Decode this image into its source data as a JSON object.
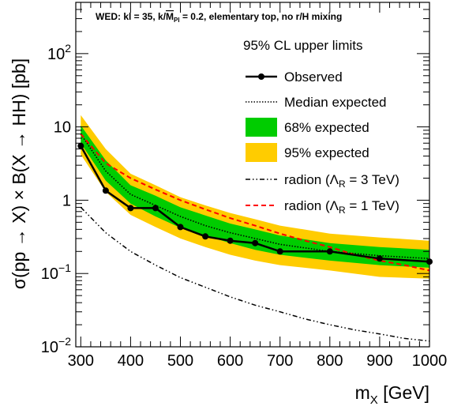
{
  "chart_data": {
    "type": "line",
    "header": {
      "pre": "WED: kl = 35, k/",
      "mbar": "M",
      "mbar_sub": "Pl",
      "post": " = 0.2, elementary top, no r/H mixing"
    },
    "ylabel": "σ(pp → X) × B(X → HH) [pb]",
    "xlabel": {
      "main": "m",
      "sub": "X",
      "unit": " [GeV]"
    },
    "x_scale": "linear",
    "y_scale": "log",
    "xlim": [
      290,
      1000
    ],
    "ylim": [
      0.01,
      500
    ],
    "x_ticks": [
      300,
      400,
      500,
      600,
      700,
      800,
      900,
      1000
    ],
    "y_ticks": [
      {
        "value": 0.01,
        "base": "10",
        "exp": "−2"
      },
      {
        "value": 0.1,
        "base": "10",
        "exp": "−1"
      },
      {
        "value": 1,
        "base": "1",
        "exp": ""
      },
      {
        "value": 10,
        "base": "10",
        "exp": ""
      },
      {
        "value": 100,
        "base": "10",
        "exp": "2"
      }
    ],
    "legend": {
      "placement": "top-right",
      "title": "95% CL upper limits",
      "entries": [
        {
          "key": "observed",
          "label": "Observed"
        },
        {
          "key": "expected",
          "label": "Median expected"
        },
        {
          "key": "band68",
          "label": "68% expected"
        },
        {
          "key": "band95",
          "label": "95% expected"
        },
        {
          "key": "radion3",
          "label": "radion (Λ",
          "sub": "R",
          "suffix": " = 3 TeV)"
        },
        {
          "key": "radion1",
          "label": "radion (Λ",
          "sub": "R",
          "suffix": " = 1 TeV)"
        }
      ]
    },
    "colors": {
      "band68": "#00cc00",
      "band95": "#ffcc00",
      "observed": "#000000",
      "expected": "#000000",
      "radion1": "#ff0000",
      "radion3": "#000000"
    },
    "series": {
      "observed": {
        "x": [
          300,
          350,
          400,
          450,
          500,
          550,
          600,
          650,
          700,
          800,
          900,
          1000
        ],
        "y": [
          5.5,
          1.35,
          0.78,
          0.78,
          0.43,
          0.32,
          0.28,
          0.26,
          0.2,
          0.2,
          0.16,
          0.145
        ]
      },
      "expected": {
        "x": [
          300,
          350,
          400,
          450,
          500,
          550,
          600,
          650,
          700,
          800,
          900,
          1000
        ],
        "y": [
          8.0,
          2.5,
          1.2,
          0.85,
          0.6,
          0.45,
          0.36,
          0.3,
          0.25,
          0.2,
          0.175,
          0.16
        ]
      },
      "band68": {
        "x": [
          300,
          350,
          400,
          450,
          500,
          550,
          600,
          650,
          700,
          800,
          900,
          1000
        ],
        "lo": [
          6.0,
          1.85,
          0.9,
          0.6,
          0.42,
          0.33,
          0.26,
          0.21,
          0.18,
          0.15,
          0.13,
          0.12
        ],
        "hi": [
          10.5,
          3.5,
          1.6,
          1.15,
          0.8,
          0.62,
          0.48,
          0.4,
          0.33,
          0.26,
          0.23,
          0.21
        ]
      },
      "band95": {
        "x": [
          300,
          350,
          400,
          450,
          500,
          550,
          600,
          650,
          700,
          800,
          900,
          1000
        ],
        "lo": [
          4.2,
          1.3,
          0.63,
          0.43,
          0.3,
          0.23,
          0.18,
          0.15,
          0.13,
          0.11,
          0.09,
          0.085
        ],
        "hi": [
          14.5,
          5.0,
          2.3,
          1.6,
          1.1,
          0.85,
          0.67,
          0.55,
          0.45,
          0.35,
          0.31,
          0.28
        ]
      },
      "radion1": {
        "x": [
          300,
          350,
          400,
          450,
          500,
          550,
          600,
          650,
          700,
          750,
          800,
          850,
          900,
          950,
          1000
        ],
        "y": [
          8.0,
          3.2,
          2.0,
          1.4,
          1.0,
          0.75,
          0.57,
          0.45,
          0.35,
          0.28,
          0.23,
          0.18,
          0.15,
          0.13,
          0.11
        ]
      },
      "radion3": {
        "x": [
          300,
          350,
          400,
          450,
          500,
          550,
          600,
          650,
          700,
          750,
          800,
          850,
          900,
          950,
          1000
        ],
        "y": [
          0.8,
          0.36,
          0.2,
          0.13,
          0.088,
          0.065,
          0.048,
          0.037,
          0.03,
          0.024,
          0.02,
          0.017,
          0.015,
          0.013,
          0.012
        ]
      }
    }
  }
}
